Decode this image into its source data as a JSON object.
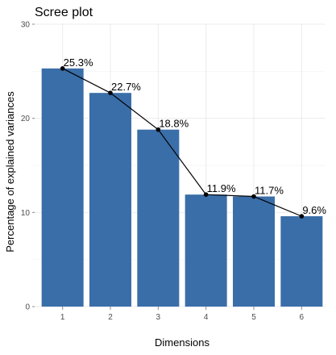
{
  "chart_data": {
    "type": "bar",
    "title": "Scree plot",
    "xlabel": "Dimensions",
    "ylabel": "Percentage of explained variances",
    "categories": [
      "1",
      "2",
      "3",
      "4",
      "5",
      "6"
    ],
    "values": [
      25.3,
      22.7,
      18.8,
      11.9,
      11.7,
      9.6
    ],
    "data_labels": [
      "25.3%",
      "22.7%",
      "18.8%",
      "11.9%",
      "11.7%",
      "9.6%"
    ],
    "ylim": [
      0,
      30
    ],
    "yticks": [
      0,
      10,
      20,
      30
    ],
    "overlay_line": true,
    "grid": true,
    "legend": "none",
    "colors": {
      "bar": "#3a6ea8",
      "line": "#000000",
      "point": "#000000",
      "background": "#ffffff",
      "grid": "#ebebeb"
    }
  }
}
